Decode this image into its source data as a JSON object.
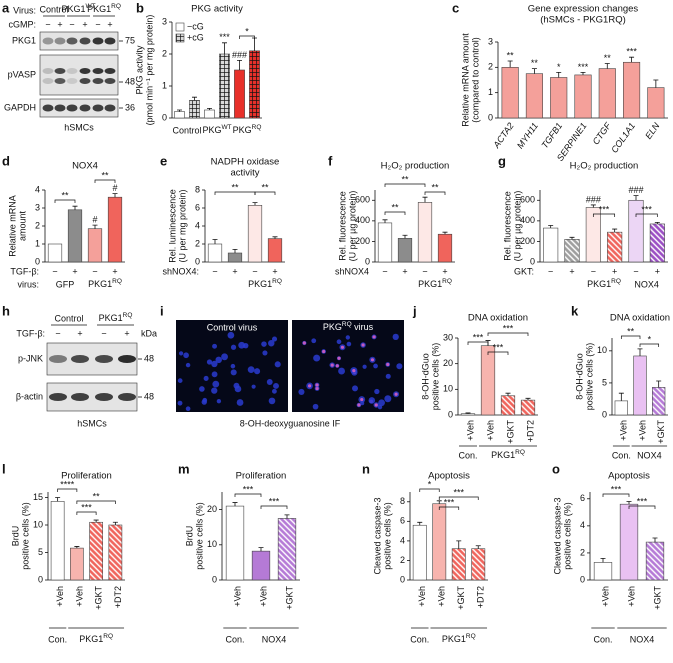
{
  "figure": {
    "a": {
      "panel": "a",
      "virus_label": "Virus:",
      "groups": [
        "Control",
        {
          "text": "PKG1",
          "sup": "WT"
        },
        {
          "text": "PKG1",
          "sup": "RQ"
        }
      ],
      "cgmp_label": "cGMP:",
      "lanes": [
        "−",
        "+",
        "−",
        "+",
        "−",
        "+"
      ],
      "bands": [
        "PKG1",
        "pVASP",
        "GAPDH"
      ],
      "kda": [
        "75",
        "48",
        "36"
      ],
      "cell": "hSMCs"
    },
    "h": {
      "panel": "h",
      "groups": [
        "Control",
        {
          "text": "PKG1",
          "sup": "RQ"
        }
      ],
      "tgf_label": "TGF-β:",
      "lanes": [
        "−",
        "+",
        "−",
        "+"
      ],
      "kda_label": "kDa",
      "bands": [
        "p-JNK",
        "β-actin"
      ],
      "kda": [
        "48",
        "48"
      ],
      "cell": "hSMCs"
    },
    "i": {
      "panel": "i",
      "images": [
        "Control virus",
        {
          "text": "PKG",
          "sup": "RQ",
          "tail": " virus"
        }
      ],
      "caption": "8-OH-deoxyguanosine IF"
    }
  },
  "chart_data": [
    {
      "type": "bar",
      "panel": "b",
      "title": [
        "PKG activity"
      ],
      "ylabel": [
        "PKG activity",
        "(pmol min⁻¹ per mg protein)"
      ],
      "categories": [
        "Control",
        {
          "text": "PKG",
          "sup": "WT"
        },
        {
          "text": "PKG",
          "sup": "RQ"
        }
      ],
      "series": [
        {
          "name": "−cG",
          "color": "#ffffff",
          "colors": [
            "#ffffff",
            "#ffffff",
            "#e8302a"
          ],
          "hatch": "none",
          "values": [
            0.2,
            0.25,
            1.5
          ],
          "errors": [
            0.05,
            0.05,
            0.3
          ]
        },
        {
          "name": "+cG",
          "color": "#d9d9d9",
          "colors": [
            "#d9d9d9",
            "#d9d9d9",
            "#e8302a"
          ],
          "hatch": "grid",
          "values": [
            0.55,
            2.0,
            2.1
          ],
          "errors": [
            0.1,
            0.35,
            0.4
          ]
        }
      ],
      "ylim": [
        0,
        3
      ],
      "yticks": [
        0,
        1,
        2,
        3
      ],
      "annotations": [
        "***",
        "###",
        "*"
      ]
    },
    {
      "type": "bar",
      "panel": "c",
      "title": [
        "Gene expression changes",
        "(hSMCs - PKG1RQ)"
      ],
      "ylabel": [
        "Relative mRNA amount",
        "(compared to control)"
      ],
      "categories": [
        "ACTA2",
        "MYH11",
        "TGFB1",
        "SERPINE1",
        "CTGF",
        "COL1A1",
        "ELN"
      ],
      "values": [
        2.0,
        1.75,
        1.6,
        1.7,
        1.95,
        2.2,
        1.2
      ],
      "errors": [
        0.25,
        0.2,
        0.2,
        0.1,
        0.2,
        0.2,
        0.3
      ],
      "colors": [
        "#f4a09a",
        "#f4a09a",
        "#f4a09a",
        "#f4a09a",
        "#f4a09a",
        "#f4a09a",
        "#f4a09a"
      ],
      "hatch": [
        "none",
        "none",
        "none",
        "none",
        "none",
        "none",
        "none"
      ],
      "ylim": [
        0,
        3
      ],
      "yticks": [
        0,
        1,
        2,
        3
      ],
      "annotations": [
        "**",
        "**",
        "*",
        "***",
        "**",
        "***"
      ]
    },
    {
      "type": "bar",
      "panel": "d",
      "title": [
        "NOX4"
      ],
      "ylabel": [
        "Relative mRNA",
        "amount"
      ],
      "values": [
        1.0,
        2.9,
        1.85,
        3.6
      ],
      "errors": [
        0.0,
        0.2,
        0.2,
        0.2
      ],
      "colors": [
        "#ffffff",
        "#8c8c8c",
        "#f4a09a",
        "#f0645c"
      ],
      "hatch": [
        "none",
        "none",
        "none",
        "none"
      ],
      "rows": [
        {
          "label": "TGF-β:",
          "ticks": [
            "−",
            "+",
            "−",
            "+"
          ]
        }
      ],
      "group_label": "virus:",
      "groups": [
        "GFP",
        {
          "text": "PKG1",
          "sup": "RQ"
        }
      ],
      "ylim": [
        0,
        4
      ],
      "yticks": [
        0,
        1,
        2,
        3,
        4
      ],
      "annotations": [
        "**",
        "**",
        "#",
        "#"
      ]
    },
    {
      "type": "bar",
      "panel": "e",
      "title": [
        "NADPH oxidase",
        "activity"
      ],
      "ylabel": [
        "Rel. luminescence",
        "(U per mg protein)"
      ],
      "values": [
        2.0,
        1.0,
        6.3,
        2.6
      ],
      "errors": [
        0.5,
        0.4,
        0.3,
        0.2
      ],
      "colors": [
        "#ffffff",
        "#8c8c8c",
        "#fde8e6",
        "#f0645c"
      ],
      "hatch": [
        "none",
        "none",
        "none",
        "none"
      ],
      "rows": [
        {
          "label": "shNOX4:",
          "ticks": [
            "−",
            "+",
            "−",
            "+"
          ]
        }
      ],
      "groups": [
        {
          "text": "PKG1",
          "sup": "RQ"
        }
      ],
      "ylim": [
        0,
        8
      ],
      "yticks": [
        0,
        2,
        4,
        6,
        8
      ],
      "annotations": [
        "**",
        "**"
      ]
    },
    {
      "type": "bar",
      "panel": "f",
      "title": [
        "H₂O₂ production"
      ],
      "ylabel": [
        "Rel. fluorescence",
        "(U per µg protein)"
      ],
      "values": [
        380,
        230,
        580,
        270
      ],
      "errors": [
        30,
        30,
        50,
        20
      ],
      "colors": [
        "#ffffff",
        "#8c8c8c",
        "#fde8e6",
        "#f0645c"
      ],
      "hatch": [
        "none",
        "none",
        "none",
        "none"
      ],
      "rows": [
        {
          "label": "shNOX4",
          "ticks": [
            "−",
            "+",
            "−",
            "+"
          ]
        }
      ],
      "groups": [
        {
          "text": "PKG1",
          "sup": "RQ"
        }
      ],
      "ylim": [
        0,
        700
      ],
      "yticks": [
        0,
        200,
        400,
        600
      ],
      "annotations": [
        "**",
        "**",
        "**"
      ]
    },
    {
      "type": "bar",
      "panel": "g",
      "title": [
        "H₂O₂ production"
      ],
      "ylabel": [
        "Rel. fluorescence",
        "(U per µg protein)"
      ],
      "values": [
        330,
        220,
        530,
        290,
        600,
        370
      ],
      "errors": [
        25,
        20,
        25,
        30,
        45,
        15
      ],
      "colors": [
        "#ffffff",
        "#9e9e9e",
        "#fde8e6",
        "#f0645c",
        "#ecd6f5",
        "#9b4fc4"
      ],
      "hatch": [
        "none",
        "diag",
        "none",
        "diag",
        "none",
        "diag"
      ],
      "rows": [
        {
          "label": "GKT:",
          "ticks": [
            "−",
            "+",
            "−",
            "+",
            "−",
            "+"
          ]
        }
      ],
      "groups": [
        {
          "text": "PKG1",
          "sup": "RQ"
        },
        "NOX4"
      ],
      "ylim": [
        0,
        700
      ],
      "yticks": [
        0,
        200,
        400,
        600
      ],
      "annotations": [
        "###",
        "***",
        "###",
        "***"
      ]
    },
    {
      "type": "bar",
      "panel": "j",
      "title": [
        "DNA oxidation"
      ],
      "ylabel": [
        "8-OH-dGuo",
        "positive cells (%)"
      ],
      "categories": [
        "+Veh",
        "+Veh",
        "+GKT",
        "+DT2"
      ],
      "values": [
        0.5,
        27,
        7.5,
        5.8
      ],
      "errors": [
        0.3,
        2,
        1,
        0.7
      ],
      "colors": [
        "#ffffff",
        "#f7b4ae",
        "#f0645c",
        "#f0645c"
      ],
      "hatch": [
        "none",
        "none",
        "diag",
        "diag"
      ],
      "groups": [
        "Con.",
        {
          "text": "PKG1",
          "sup": "RQ"
        }
      ],
      "ylim": [
        0,
        30
      ],
      "yticks": [
        0,
        10,
        20,
        30
      ],
      "annotations": [
        "***",
        "***",
        "***"
      ]
    },
    {
      "type": "bar",
      "panel": "k",
      "title": [
        "DNA oxidation"
      ],
      "ylabel": [
        "8-OH-dGuo",
        "positive cells (%)"
      ],
      "categories": [
        "+Veh",
        "+Veh",
        "+GKT"
      ],
      "values": [
        2.2,
        9.2,
        4.3
      ],
      "errors": [
        1.2,
        1.1,
        1.0
      ],
      "colors": [
        "#ffffff",
        "#e9c1f2",
        "#b57ad6"
      ],
      "hatch": [
        "none",
        "none",
        "diag"
      ],
      "groups": [
        "Con.",
        "NOX4"
      ],
      "ylim": [
        0,
        12
      ],
      "yticks": [
        0,
        5,
        10
      ],
      "annotations": [
        "**",
        "*"
      ]
    },
    {
      "type": "bar",
      "panel": "l",
      "title": [
        "Proliferation"
      ],
      "ylabel": [
        "BrdU",
        "positive cells (%)"
      ],
      "categories": [
        "+Veh",
        "+Veh",
        "+GKT",
        "+DT2"
      ],
      "values": [
        14.3,
        5.8,
        10.5,
        10.0
      ],
      "errors": [
        0.7,
        0.3,
        0.4,
        0.5
      ],
      "colors": [
        "#ffffff",
        "#f7b4ae",
        "#f0645c",
        "#f0645c"
      ],
      "hatch": [
        "none",
        "none",
        "diag",
        "diag"
      ],
      "groups": [
        "Con.",
        {
          "text": "PKG1",
          "sup": "RQ"
        }
      ],
      "ylim": [
        0,
        16
      ],
      "yticks": [
        0,
        5,
        10,
        15
      ],
      "annotations": [
        "****",
        "***",
        "**"
      ]
    },
    {
      "type": "bar",
      "panel": "m",
      "title": [
        "Proliferation"
      ],
      "ylabel": [
        "BrdU",
        "positive cells (%)"
      ],
      "categories": [
        "+Veh",
        "+Veh",
        "+GKT"
      ],
      "values": [
        21,
        8.2,
        17.5
      ],
      "errors": [
        1,
        1,
        1
      ],
      "colors": [
        "#ffffff",
        "#b57ad6",
        "#b57ad6"
      ],
      "hatch": [
        "none",
        "none",
        "diag"
      ],
      "groups": [
        "Con.",
        "NOX4"
      ],
      "ylim": [
        0,
        25
      ],
      "yticks": [
        0,
        10,
        20
      ],
      "annotations": [
        "***",
        "***"
      ]
    },
    {
      "type": "bar",
      "panel": "n",
      "title": [
        "Apoptosis"
      ],
      "ylabel": [
        "Cleaved caspase-3",
        "positive cells (%)"
      ],
      "categories": [
        "+Veh",
        "+Veh",
        "+GKT",
        "+DT2"
      ],
      "values": [
        5.6,
        7.8,
        3.2,
        3.2
      ],
      "errors": [
        0.3,
        0.3,
        0.8,
        0.3
      ],
      "colors": [
        "#ffffff",
        "#f7b4ae",
        "#f0645c",
        "#f0645c"
      ],
      "hatch": [
        "none",
        "none",
        "diag",
        "diag"
      ],
      "groups": [
        "Con.",
        {
          "text": "PKG1",
          "sup": "RQ"
        }
      ],
      "ylim": [
        0,
        9
      ],
      "yticks": [
        0,
        2,
        4,
        6,
        8
      ],
      "annotations": [
        "*",
        "***",
        "***"
      ]
    },
    {
      "type": "bar",
      "panel": "o",
      "title": [
        "Apoptosis"
      ],
      "ylabel": [
        "Cleaved caspase-3",
        "positive cells (%)"
      ],
      "categories": [
        "+Veh",
        "+Veh",
        "+GKT"
      ],
      "values": [
        1.3,
        5.6,
        2.8
      ],
      "errors": [
        0.3,
        0.2,
        0.3
      ],
      "colors": [
        "#ffffff",
        "#e9c1f2",
        "#b57ad6"
      ],
      "hatch": [
        "none",
        "none",
        "diag"
      ],
      "groups": [
        "Con.",
        "NOX4"
      ],
      "ylim": [
        0,
        6.5
      ],
      "yticks": [
        0,
        2,
        4,
        6
      ],
      "annotations": [
        "***",
        "***"
      ]
    }
  ]
}
